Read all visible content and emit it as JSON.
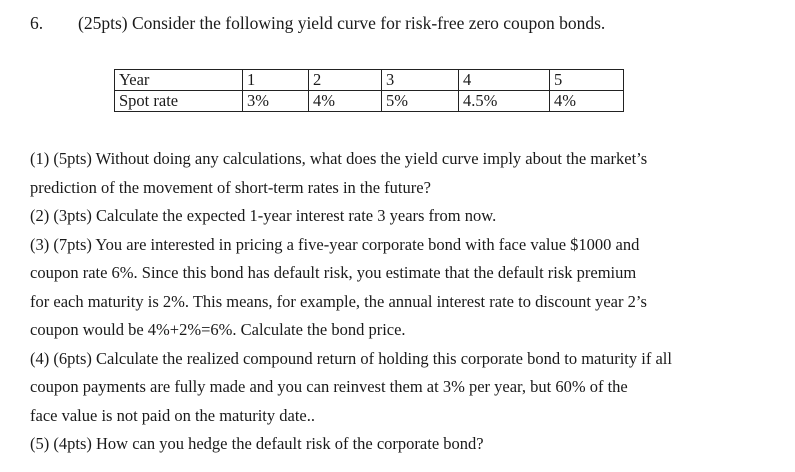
{
  "question": {
    "number": "6.",
    "intro": "(25pts) Consider the following yield curve for risk-free zero coupon bonds."
  },
  "table": {
    "row_labels": [
      "Year",
      "Spot rate"
    ],
    "years": [
      "1",
      "2",
      "3",
      "4",
      "5"
    ],
    "spot_rates": [
      "3%",
      "4%",
      "5%",
      "4.5%",
      "4%"
    ]
  },
  "subquestions": [
    {
      "lines": [
        "(1) (5pts) Without doing any calculations, what does the yield curve imply about the market’s",
        "prediction of the movement of short-term rates in the future?"
      ]
    },
    {
      "lines": [
        "(2) (3pts) Calculate the expected 1-year interest rate 3 years from now."
      ]
    },
    {
      "lines": [
        "(3) (7pts) You are interested in pricing a five-year corporate bond with face value $1000 and",
        "coupon rate 6%. Since this bond has default risk, you estimate that the default risk premium",
        "for each maturity is 2%. This means, for example, the annual interest rate to discount year 2’s",
        "coupon would be 4%+2%=6%. Calculate the bond price."
      ]
    },
    {
      "lines": [
        "(4) (6pts) Calculate the realized compound return of holding this corporate bond to maturity if all",
        "coupon payments are fully made and you can reinvest them at 3% per year, but 60% of the",
        "face value is not paid on the maturity date.."
      ]
    },
    {
      "lines": [
        "(5) (4pts) How can you hedge the default risk of the corporate bond?"
      ]
    }
  ]
}
